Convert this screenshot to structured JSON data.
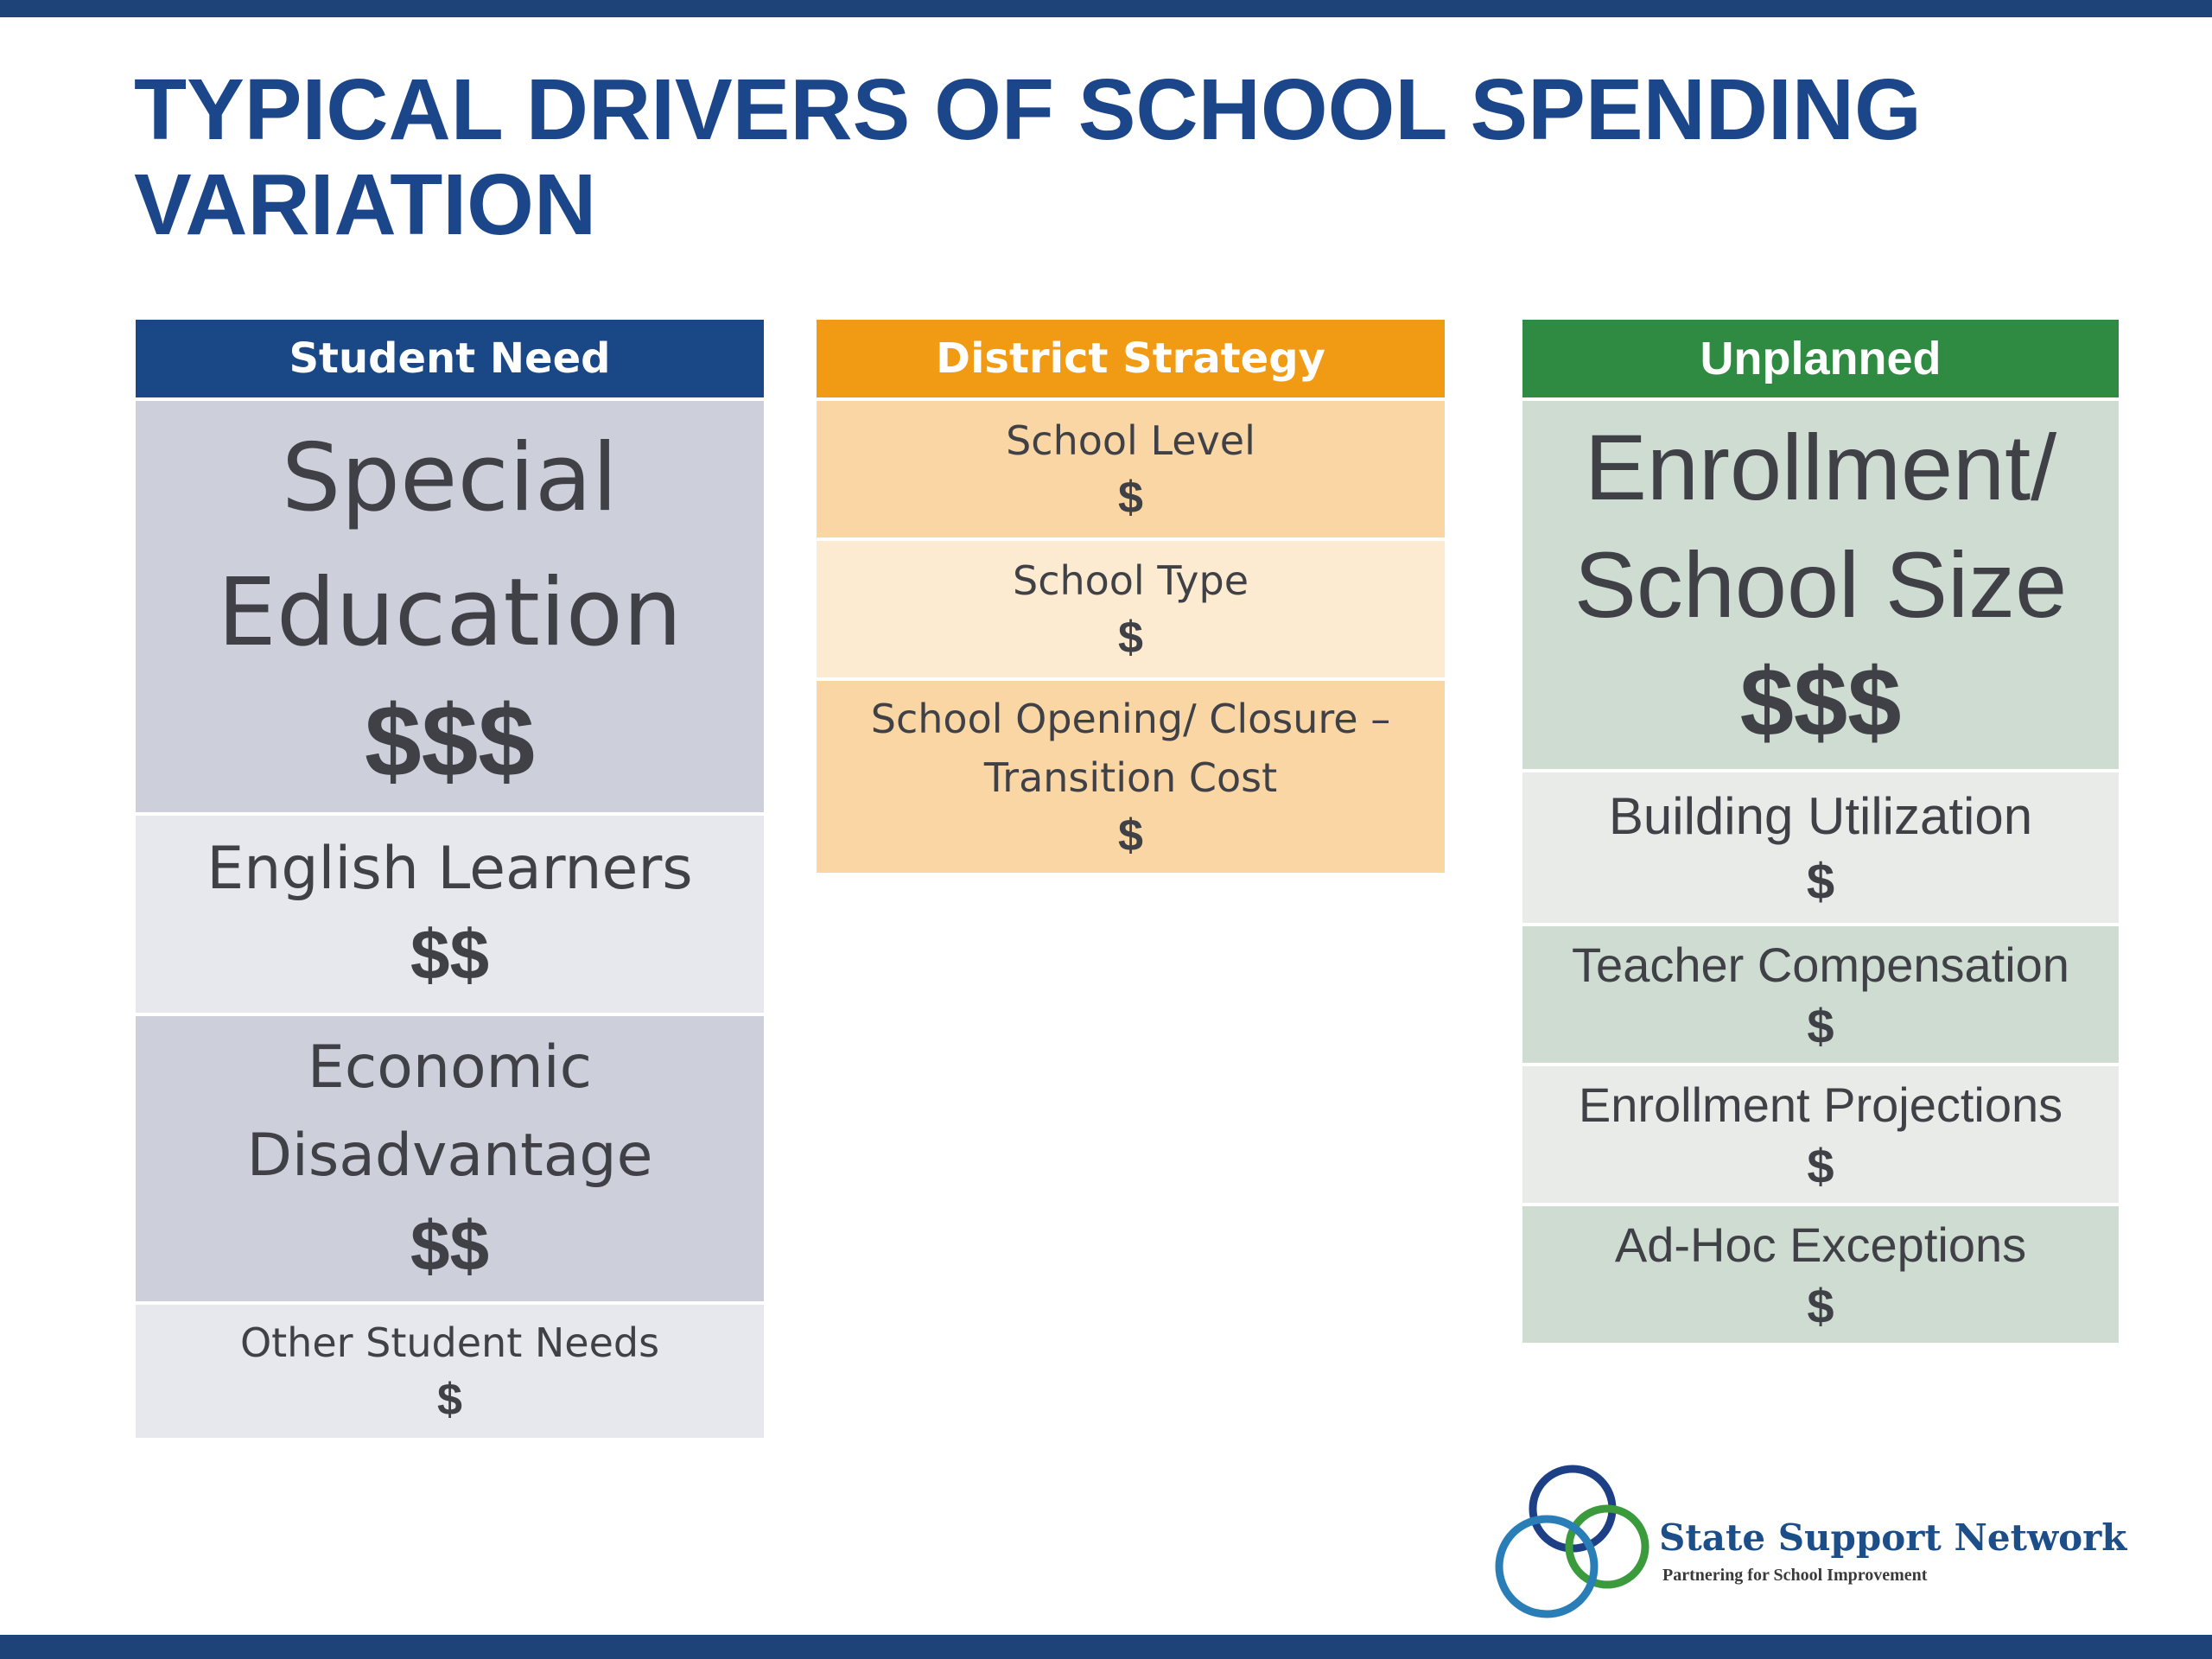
{
  "title": "TYPICAL DRIVERS OF SCHOOL SPENDING\nVARIATION",
  "columns": [
    {
      "header": "Student Need",
      "items": [
        {
          "label": "Special\nEducation",
          "cost": "$$$"
        },
        {
          "label": "English Learners",
          "cost": "$$"
        },
        {
          "label": "Economic\nDisadvantage",
          "cost": "$$"
        },
        {
          "label": "Other Student Needs",
          "cost": "$"
        }
      ]
    },
    {
      "header": "District Strategy",
      "items": [
        {
          "label": "School Level",
          "cost": "$"
        },
        {
          "label": "School Type",
          "cost": "$"
        },
        {
          "label": "School Opening/ Closure –\nTransition Cost",
          "cost": "$"
        }
      ]
    },
    {
      "header": "Unplanned",
      "items": [
        {
          "label": "Enrollment/\nSchool Size",
          "cost": "$$$"
        },
        {
          "label": "Building Utilization",
          "cost": "$"
        },
        {
          "label": "Teacher Compensation",
          "cost": "$"
        },
        {
          "label": "Enrollment Projections",
          "cost": "$"
        },
        {
          "label": "Ad-Hoc Exceptions",
          "cost": "$"
        }
      ]
    }
  ],
  "logo": {
    "name": "State Support Network",
    "tagline": "Partnering for School Improvement"
  },
  "colors": {
    "title": "#1c468a",
    "bar": "#1d4379",
    "student_need": "#1a4786",
    "district_strategy": "#f19b14",
    "unplanned": "#2f8b41"
  }
}
